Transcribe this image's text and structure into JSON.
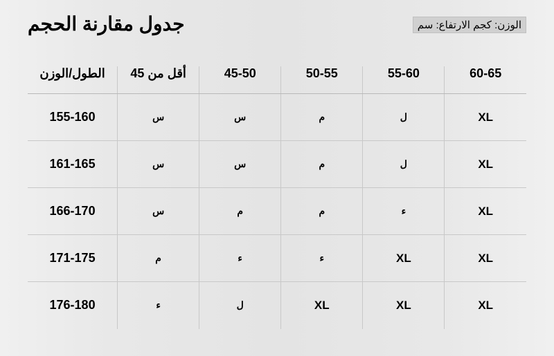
{
  "title": "جدول مقارنة الحجم",
  "unit_label": "الوزن: كجم الارتفاع: سم",
  "table": {
    "type": "table",
    "background_color": "#e8e8e8",
    "border_color": "#c0c0c0",
    "header_fontsize": 18,
    "cell_fontsize_arabic": 14,
    "cell_fontsize_latin": 17,
    "columns": [
      {
        "label": "الطول/الوزن",
        "dir": "rtl"
      },
      {
        "label": "أقل من 45",
        "dir": "rtl"
      },
      {
        "label": "45-50",
        "dir": "ltr"
      },
      {
        "label": "50-55",
        "dir": "ltr"
      },
      {
        "label": "55-60",
        "dir": "ltr"
      },
      {
        "label": "60-65",
        "dir": "ltr"
      }
    ],
    "rows": [
      {
        "header": "155-160",
        "cells": [
          "س",
          "س",
          "م",
          "ل",
          "XL"
        ]
      },
      {
        "header": "161-165",
        "cells": [
          "س",
          "س",
          "م",
          "ل",
          "XL"
        ]
      },
      {
        "header": "166-170",
        "cells": [
          "س",
          "م",
          "م",
          "ء",
          "XL"
        ]
      },
      {
        "header": "171-175",
        "cells": [
          "م",
          "ء",
          "ء",
          "XL",
          "XL"
        ]
      },
      {
        "header": "176-180",
        "cells": [
          "ء",
          "ل",
          "XL",
          "XL",
          "XL"
        ]
      }
    ]
  }
}
